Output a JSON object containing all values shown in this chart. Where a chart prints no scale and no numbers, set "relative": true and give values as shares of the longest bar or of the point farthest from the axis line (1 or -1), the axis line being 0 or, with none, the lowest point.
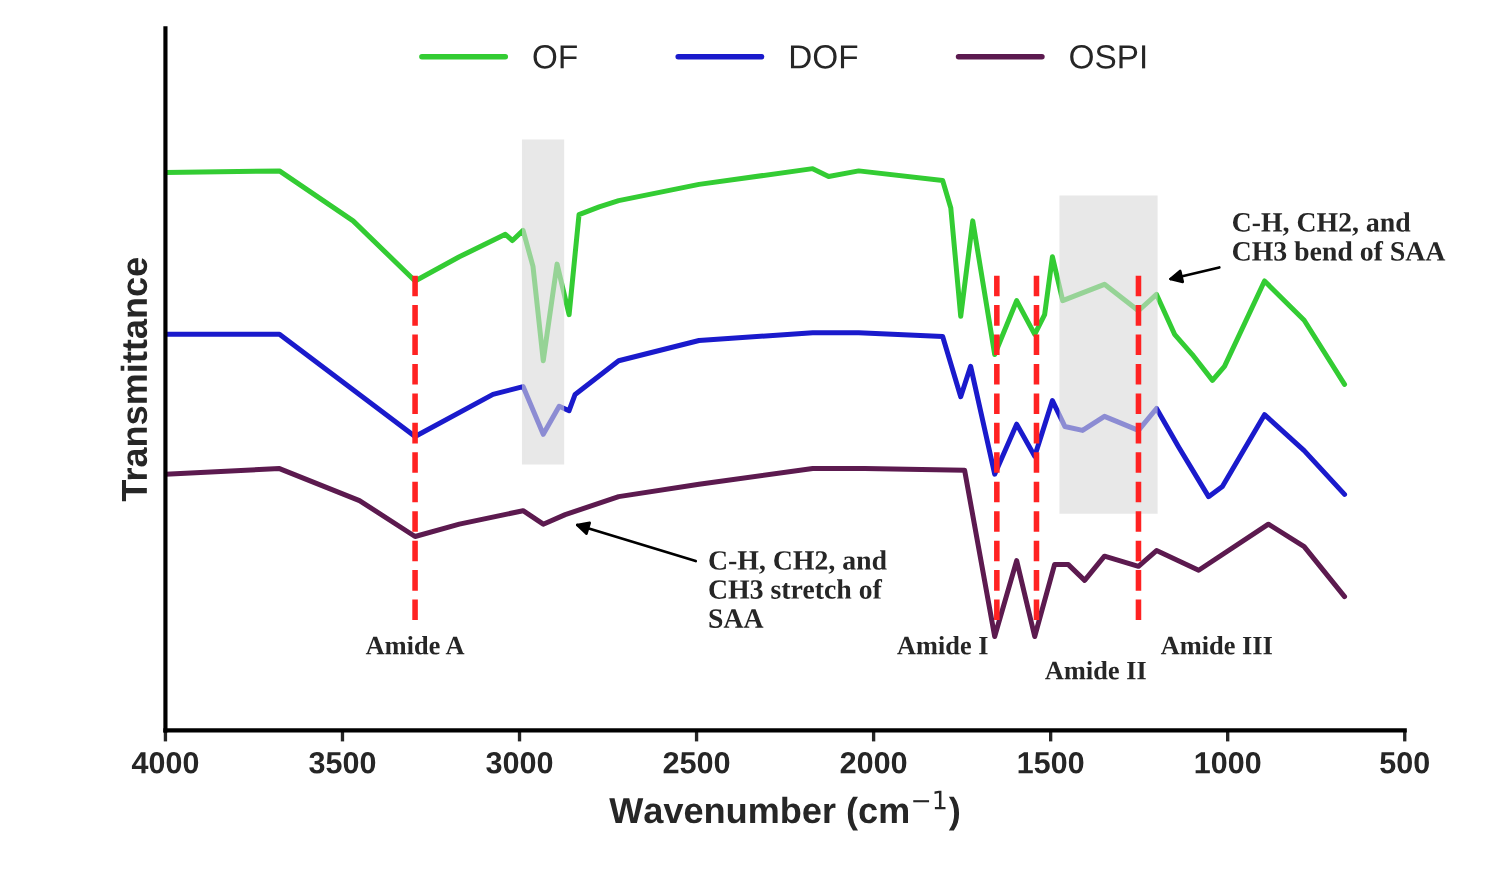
{
  "chart_data": {
    "type": "line",
    "relative": true,
    "xlabel": "Wavenumber (cm$^{−1}$)",
    "ylabel": "Transmittance",
    "xlim": [
      4000,
      500
    ],
    "xticks": [
      4000,
      3500,
      3000,
      2500,
      2000,
      1500,
      1000,
      500
    ],
    "tick_labels": "x",
    "grid": false,
    "legend": "top",
    "line_style": "solid",
    "series": [
      {
        "name": "OF",
        "color": "#33cc33",
        "x": [
          4000,
          3678,
          3470,
          3295,
          3170,
          3040,
          3020,
          2990,
          2962,
          2933,
          2894,
          2860,
          2832,
          2775,
          2720,
          2493,
          2172,
          2127,
          2042,
          1805,
          1782,
          1754,
          1720,
          1658,
          1596,
          1545,
          1517,
          1495,
          1466,
          1421,
          1348,
          1252,
          1201,
          1150,
          1100,
          1043,
          1009,
          896,
          784,
          670
        ],
        "values": [
          0.993,
          0.996,
          0.907,
          0.8,
          0.843,
          0.883,
          0.872,
          0.89,
          0.826,
          0.658,
          0.83,
          0.74,
          0.918,
          0.932,
          0.943,
          0.972,
          1.0,
          0.986,
          0.996,
          0.979,
          0.93,
          0.737,
          0.907,
          0.669,
          0.765,
          0.705,
          0.74,
          0.843,
          0.765,
          0.776,
          0.794,
          0.747,
          0.776,
          0.705,
          0.669,
          0.623,
          0.648,
          0.8,
          0.73,
          0.616
        ]
      },
      {
        "name": "DOF",
        "color": "#1a1acc",
        "x": [
          4000,
          3678,
          3295,
          3075,
          2990,
          2933,
          2888,
          2860,
          2843,
          2720,
          2493,
          2172,
          2042,
          1805,
          1754,
          1726,
          1658,
          1596,
          1545,
          1495,
          1460,
          1410,
          1348,
          1252,
          1201,
          1139,
          1054,
          1015,
          896,
          784,
          670
        ],
        "values": [
          0.705,
          0.705,
          0.523,
          0.598,
          0.612,
          0.527,
          0.577,
          0.569,
          0.598,
          0.658,
          0.694,
          0.708,
          0.708,
          0.701,
          0.594,
          0.648,
          0.456,
          0.545,
          0.488,
          0.587,
          0.541,
          0.534,
          0.559,
          0.534,
          0.573,
          0.505,
          0.416,
          0.434,
          0.562,
          0.498,
          0.42
        ]
      },
      {
        "name": "OSPI",
        "color": "#5c1a4f",
        "x": [
          4000,
          3678,
          3452,
          3295,
          3170,
          2990,
          2933,
          2871,
          2720,
          2493,
          2172,
          2025,
          1743,
          1658,
          1596,
          1545,
          1489,
          1450,
          1404,
          1348,
          1252,
          1201,
          1082,
          885,
          784,
          670
        ],
        "values": [
          0.456,
          0.466,
          0.409,
          0.345,
          0.367,
          0.391,
          0.367,
          0.384,
          0.416,
          0.438,
          0.466,
          0.466,
          0.463,
          0.167,
          0.302,
          0.167,
          0.295,
          0.295,
          0.267,
          0.31,
          0.292,
          0.32,
          0.285,
          0.367,
          0.327,
          0.238
        ]
      }
    ],
    "ref_lines": [
      {
        "axis": "x",
        "value": 3295,
        "label": "Amide A",
        "color": "#ff2222",
        "line_style": "dashed"
      },
      {
        "axis": "x",
        "value": 1652,
        "label": "Amide I",
        "color": "#ff2222",
        "line_style": "dashed"
      },
      {
        "axis": "x",
        "value": 1540,
        "label": "Amide II",
        "color": "#ff2222",
        "line_style": "dashed"
      },
      {
        "axis": "x",
        "value": 1252,
        "label": "Amide III",
        "color": "#ff2222",
        "line_style": "dashed"
      }
    ],
    "bands": [
      {
        "axis": "x",
        "from": 2990,
        "to": 2877,
        "color": "#d9d9d9"
      },
      {
        "axis": "x",
        "from": 1472,
        "to": 1201,
        "color": "#d9d9d9"
      }
    ],
    "annotations": [
      {
        "text": "C-H, CH2, and\nCH3 stretch of\nSAA",
        "x": 2860,
        "y": 0.37
      },
      {
        "text": "C-H, CH2, and\nCH3 bend of SAA",
        "x": 1185,
        "y": 0.8
      }
    ]
  }
}
